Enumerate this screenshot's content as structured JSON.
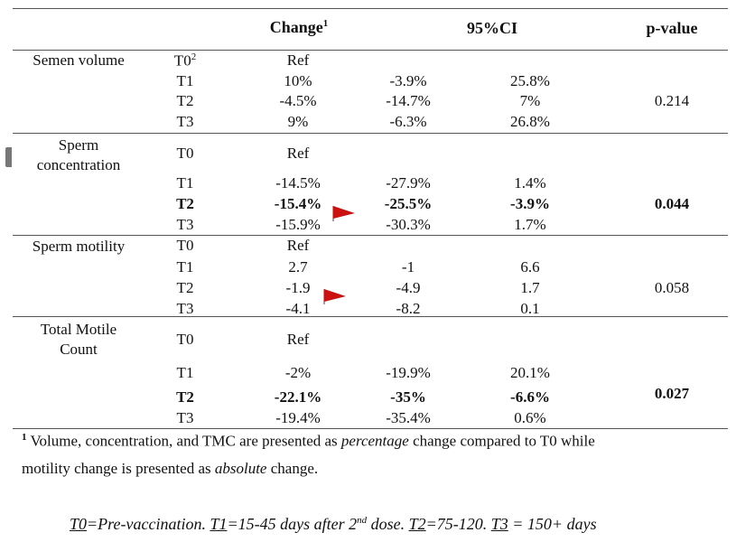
{
  "table": {
    "headers": {
      "change": "Change",
      "change_sup": "1",
      "ci": "95%CI",
      "pvalue": "p-value"
    },
    "groups": [
      {
        "label_lines": [
          "Semen volume"
        ],
        "rows": [
          {
            "time": "T0",
            "time_sup": "2",
            "change": "Ref",
            "ci_low": "",
            "ci_high": "",
            "bold": false
          },
          {
            "time": "T1",
            "change": "10%",
            "ci_low": "-3.9%",
            "ci_high": "25.8%",
            "bold": false
          },
          {
            "time": "T2",
            "change": "-4.5%",
            "ci_low": "-14.7%",
            "ci_high": "7%",
            "bold": false
          },
          {
            "time": "T3",
            "change": "9%",
            "ci_low": "-6.3%",
            "ci_high": "26.8%",
            "bold": false
          }
        ],
        "pvalue": "0.214",
        "pvalue_bold": false
      },
      {
        "label_lines": [
          "Sperm",
          "concentration"
        ],
        "rows": [
          {
            "time": "T0",
            "change": "Ref",
            "ci_low": "",
            "ci_high": "",
            "bold": false
          },
          {
            "time": "T1",
            "change": "-14.5%",
            "ci_low": "-27.9%",
            "ci_high": "1.4%",
            "bold": false
          },
          {
            "time": "T2",
            "change": "-15.4%",
            "ci_low": "-25.5%",
            "ci_high": "-3.9%",
            "bold": true
          },
          {
            "time": "T3",
            "change": "-15.9%",
            "ci_low": "-30.3%",
            "ci_high": "1.7%",
            "bold": false
          }
        ],
        "pvalue": "0.044",
        "pvalue_bold": true
      },
      {
        "label_lines": [
          "Sperm motility"
        ],
        "rows": [
          {
            "time": "T0",
            "change": "Ref",
            "ci_low": "",
            "ci_high": "",
            "bold": false
          },
          {
            "time": "T1",
            "change": "2.7",
            "ci_low": "-1",
            "ci_high": "6.6",
            "bold": false
          },
          {
            "time": "T2",
            "change": "-1.9",
            "ci_low": "-4.9",
            "ci_high": "1.7",
            "bold": false
          },
          {
            "time": "T3",
            "change": "-4.1",
            "ci_low": "-8.2",
            "ci_high": "0.1",
            "bold": false
          }
        ],
        "pvalue": "0.058",
        "pvalue_bold": false
      },
      {
        "label_lines": [
          "Total Motile",
          "Count"
        ],
        "rows": [
          {
            "time": "T0",
            "change": "Ref",
            "ci_low": "",
            "ci_high": "",
            "bold": false
          },
          {
            "time": "T1",
            "change": "-2%",
            "ci_low": "-19.9%",
            "ci_high": "20.1%",
            "bold": false
          },
          {
            "time": "T2",
            "change": "-22.1%",
            "ci_low": "-35%",
            "ci_high": "-6.6%",
            "bold": true
          },
          {
            "time": "T3",
            "change": "-19.4%",
            "ci_low": "-35.4%",
            "ci_high": "0.6%",
            "bold": false
          }
        ],
        "pvalue": "0.027",
        "pvalue_bold": true
      }
    ]
  },
  "footnote": {
    "marker": "1",
    "line1_a": " Volume, concentration, and TMC are presented as ",
    "line1_em": "percentage",
    "line1_b": " change compared to T0 while",
    "line2_a": "motility change is presented as ",
    "line2_em": "absolute",
    "line2_b": " change."
  },
  "legend": {
    "t0": "T0",
    "t0_text": "=Pre-vaccination. ",
    "t1": "T1",
    "t1_text": "=15-45 days after 2",
    "t1_sup": "nd",
    "t1_tail": " dose. ",
    "t2": "T2",
    "t2_text": "=75-120. ",
    "t3": "T3",
    "t3_text": " = 150+ days"
  },
  "colors": {
    "flag": "#cc1111",
    "rule": "#555555",
    "text": "#111111"
  },
  "icons": {
    "flag_icon": "red-flag-icon",
    "side_marker": "tab-marker-icon"
  }
}
